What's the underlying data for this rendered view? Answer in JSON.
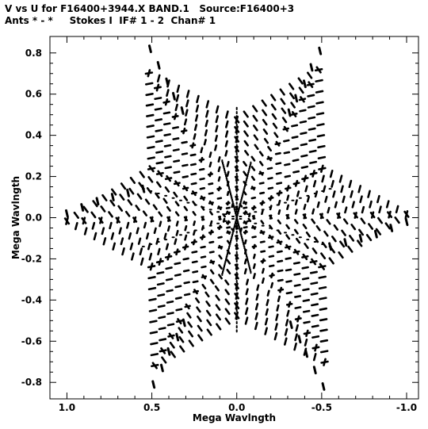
{
  "header": {
    "line1": "V vs U for F16400+3944.X BAND.1   Source:F16400+3",
    "line2": "Ants * - *     Stokes I  IF# 1 - 2  Chan# 1"
  },
  "chart_data": {
    "type": "scatter",
    "title": "V vs U for F16400+3944.X BAND.1   Source:F16400+3",
    "subtitle": "Ants * - *     Stokes I  IF# 1 - 2  Chan# 1",
    "xlabel": "Mega Wavlngth",
    "ylabel": "Mega Wavlngth",
    "xlim": [
      1.1,
      -1.07
    ],
    "ylim": [
      -0.88,
      0.88
    ],
    "x_ticks": [
      1.0,
      0.5,
      0.0,
      -0.5,
      -1.0
    ],
    "x_tick_labels": [
      "1.0",
      "0.5",
      "0.0",
      "-0.5",
      "-1.0"
    ],
    "y_ticks": [
      0.8,
      0.6,
      0.4,
      0.2,
      0.0,
      -0.2,
      -0.4,
      -0.6,
      -0.8
    ],
    "y_tick_labels": [
      "0.8",
      "0.6",
      "0.4",
      "0.2",
      "0.0",
      "-0.2",
      "-0.4",
      "-0.6",
      "-0.8"
    ],
    "grid": false,
    "marker_color": "#000000",
    "pattern": {
      "description_points": "Snapshot uv-tracks forming a six-armed (hexagonal) star; each dash is a short track segment",
      "arm_angles_deg": [
        0,
        60,
        120
      ],
      "rings": 10,
      "max_radius": 1.0
    },
    "points": [
      [
        1.0,
        0.02
      ],
      [
        0.91,
        0.05
      ],
      [
        0.82,
        0.08
      ],
      [
        0.73,
        0.1
      ],
      [
        0.64,
        0.12
      ],
      [
        0.55,
        0.14
      ],
      [
        -1.0,
        -0.02
      ],
      [
        -0.91,
        -0.05
      ],
      [
        -0.82,
        -0.08
      ],
      [
        -0.73,
        -0.1
      ],
      [
        -0.64,
        -0.12
      ],
      [
        -0.55,
        -0.14
      ],
      [
        0.51,
        0.82
      ],
      [
        0.46,
        0.74
      ],
      [
        0.41,
        0.66
      ],
      [
        0.37,
        0.59
      ],
      [
        0.32,
        0.52
      ],
      [
        -0.51,
        -0.82
      ],
      [
        -0.46,
        -0.74
      ],
      [
        -0.41,
        -0.66
      ],
      [
        -0.37,
        -0.59
      ],
      [
        -0.32,
        -0.52
      ],
      [
        -0.49,
        0.81
      ],
      [
        -0.44,
        0.73
      ],
      [
        -0.4,
        0.65
      ],
      [
        -0.35,
        0.58
      ],
      [
        -0.31,
        0.51
      ],
      [
        0.49,
        -0.81
      ],
      [
        0.44,
        -0.73
      ],
      [
        0.4,
        -0.65
      ],
      [
        0.35,
        -0.58
      ],
      [
        0.31,
        -0.51
      ]
    ]
  }
}
